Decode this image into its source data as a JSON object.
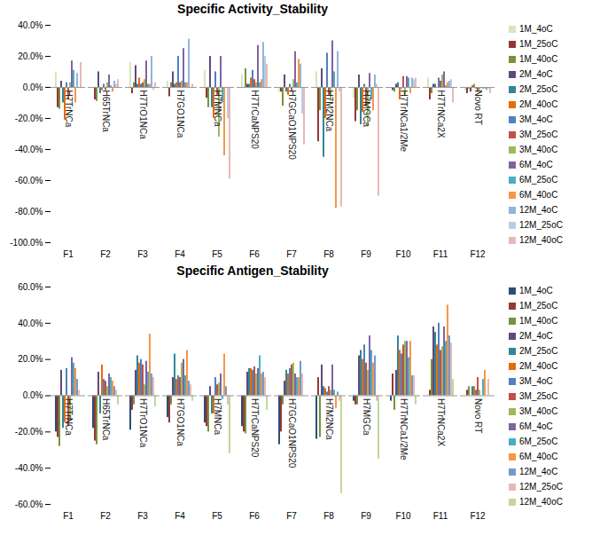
{
  "chart_data": [
    {
      "type": "bar",
      "title": "Specific Activity_Stability",
      "categories": [
        "F1",
        "F2",
        "F3",
        "F4",
        "F5",
        "F6",
        "F7",
        "F8",
        "F9",
        "F10",
        "F11",
        "F12"
      ],
      "group_labels": [
        "H7TrNCa",
        "H65TrNCa",
        "H7TrO1NCa",
        "H7GO1NCa",
        "H7MNCa",
        "H7TrCaNPS20",
        "H7GCaO1NPS20",
        "H7M2NCa",
        "H7MGCa",
        "H7TrNCa1/2Me",
        "H7TrNCa2X",
        "Novo RT"
      ],
      "ylim": [
        -100,
        40
      ],
      "yticks": [
        {
          "value": -100,
          "label": "-100.0%"
        },
        {
          "value": -80,
          "label": "-80.0%"
        },
        {
          "value": -60,
          "label": "-60.0%"
        },
        {
          "value": -40,
          "label": "-40.0%"
        },
        {
          "value": -20,
          "label": "-20.0%"
        },
        {
          "value": 0,
          "label": "0.0%"
        },
        {
          "value": 20,
          "label": "20.0%"
        },
        {
          "value": 40,
          "label": "40.0%"
        }
      ],
      "legend": "right",
      "series": [
        {
          "name": "1M_4oC",
          "color": "#d7e4bd",
          "values": [
            10,
            0,
            16,
            4,
            11,
            8,
            -3,
            10,
            -7,
            0,
            6,
            -2
          ]
        },
        {
          "name": "1M_25oC",
          "color": "#953735",
          "values": [
            -13,
            -8,
            -4,
            -6,
            -7,
            0,
            -3,
            -35,
            -22,
            -2,
            -8,
            -4
          ]
        },
        {
          "name": "1M_40oC",
          "color": "#77933c",
          "values": [
            -14,
            -9,
            3,
            3,
            -13,
            12,
            -12,
            -15,
            -15,
            -3,
            -4,
            -1
          ]
        },
        {
          "name": "2M_4oC",
          "color": "#604a7b",
          "values": [
            4,
            10,
            14,
            10,
            20,
            2,
            8,
            12,
            8,
            2,
            2,
            -3
          ]
        },
        {
          "name": "2M_25oC",
          "color": "#31859c",
          "values": [
            -10,
            -4,
            2,
            2,
            -13,
            2,
            -3,
            -45,
            -24,
            3,
            2,
            1
          ]
        },
        {
          "name": "2M_40oC",
          "color": "#e46c0a",
          "values": [
            -21,
            -2,
            6,
            3,
            -20,
            6,
            -5,
            -20,
            -16,
            -8,
            0,
            2
          ]
        },
        {
          "name": "3M_4oC",
          "color": "#4f81bd",
          "values": [
            3,
            2,
            2,
            20,
            10,
            11,
            2,
            22,
            2,
            -1,
            6,
            -1
          ]
        },
        {
          "name": "3M_25oC",
          "color": "#c0504d",
          "values": [
            -8,
            -2,
            3,
            3,
            -5,
            5,
            -3,
            -5,
            -12,
            7,
            4,
            -3
          ]
        },
        {
          "name": "3M_40oC",
          "color": "#9bbb59",
          "values": [
            3,
            3,
            5,
            4,
            -32,
            3,
            5,
            -8,
            -25,
            -5,
            8,
            -2
          ]
        },
        {
          "name": "6M_4oC",
          "color": "#8064a2",
          "values": [
            17,
            8,
            17,
            25,
            20,
            27,
            23,
            30,
            9,
            7,
            10,
            0
          ]
        },
        {
          "name": "6M_25oC",
          "color": "#4bacc6",
          "values": [
            11,
            1,
            2,
            3,
            -10,
            3,
            3,
            10,
            -8,
            6,
            1,
            -1
          ]
        },
        {
          "name": "6M_40oC",
          "color": "#f79646",
          "values": [
            -10,
            -3,
            2,
            3,
            -44,
            5,
            18,
            -78,
            -15,
            -4,
            3,
            -1
          ]
        },
        {
          "name": "12M_4oC",
          "color": "#95b3d7",
          "values": [
            9,
            4,
            20,
            31,
            0,
            29,
            15,
            23,
            8,
            6,
            4,
            -2
          ]
        },
        {
          "name": "12M_25oC",
          "color": "#b9cde5",
          "values": [
            0,
            2,
            -2,
            0,
            -20,
            20,
            -17,
            -3,
            2,
            5,
            5,
            -1
          ]
        },
        {
          "name": "12M_40oC",
          "color": "#e6b9b8",
          "values": [
            16,
            5,
            3,
            2,
            -59,
            15,
            -37,
            -77,
            -70,
            6,
            -10,
            -4
          ]
        }
      ]
    },
    {
      "type": "bar",
      "title": "Specific Antigen_Stability",
      "categories": [
        "F1",
        "F2",
        "F3",
        "F4",
        "F5",
        "F6",
        "F7",
        "F8",
        "F9",
        "F10",
        "F11",
        "F12"
      ],
      "group_labels": [
        "H7TrNCa",
        "H65TrNCa",
        "H7TrO1NCa",
        "H7GO1NCa",
        "H7MNCa",
        "H7TrCaNPS20",
        "H7GCaO1NPS20",
        "H7M2NCa",
        "H7MGCa",
        "H7TrNCa1/2Me",
        "H7TrNCa2X",
        "Novo RT"
      ],
      "ylim": [
        -60,
        60
      ],
      "yticks": [
        {
          "value": -60,
          "label": "-60.0%"
        },
        {
          "value": -40,
          "label": "-40.0%"
        },
        {
          "value": -20,
          "label": "-20.0%"
        },
        {
          "value": 0,
          "label": "0.0%"
        },
        {
          "value": 20,
          "label": "20.0%"
        },
        {
          "value": 40,
          "label": "40.0%"
        },
        {
          "value": 60,
          "label": "60.0%"
        }
      ],
      "legend": "right",
      "series": [
        {
          "name": "1M_4oC",
          "color": "#2c4d75",
          "values": [
            -20,
            -18,
            -19,
            -12,
            -15,
            -17,
            -27,
            -24,
            -3,
            -3,
            0,
            0
          ]
        },
        {
          "name": "1M_25oC",
          "color": "#953735",
          "values": [
            -23,
            -25,
            -8,
            -15,
            -17,
            -20,
            -20,
            10,
            -5,
            12,
            3,
            3
          ]
        },
        {
          "name": "1M_40oC",
          "color": "#77933c",
          "values": [
            -28,
            -27,
            -5,
            -5,
            -20,
            -21,
            -5,
            -23,
            -5,
            -8,
            20,
            5
          ]
        },
        {
          "name": "2M_4oC",
          "color": "#604a7b",
          "values": [
            14,
            13,
            14,
            10,
            5,
            13,
            8,
            17,
            22,
            14,
            38,
            0
          ]
        },
        {
          "name": "2M_25oC",
          "color": "#31859c",
          "values": [
            -18,
            -10,
            22,
            23,
            -10,
            15,
            14,
            5,
            25,
            33,
            35,
            5
          ]
        },
        {
          "name": "2M_40oC",
          "color": "#e46c0a",
          "values": [
            -15,
            17,
            18,
            9,
            -10,
            15,
            12,
            4,
            20,
            25,
            28,
            5
          ]
        },
        {
          "name": "3M_4oC",
          "color": "#4f81bd",
          "values": [
            15,
            9,
            20,
            11,
            10,
            14,
            15,
            2,
            28,
            23,
            40,
            3
          ]
        },
        {
          "name": "3M_25oC",
          "color": "#c0504d",
          "values": [
            -17,
            8,
            17,
            10,
            6,
            16,
            17,
            5,
            18,
            28,
            25,
            10
          ]
        },
        {
          "name": "3M_40oC",
          "color": "#9bbb59",
          "values": [
            -14,
            5,
            6,
            18,
            7,
            12,
            18,
            3,
            14,
            30,
            27,
            3
          ]
        },
        {
          "name": "6M_4oC",
          "color": "#8064a2",
          "values": [
            21,
            12,
            19,
            20,
            12,
            15,
            12,
            17,
            33,
            30,
            38,
            0
          ]
        },
        {
          "name": "6M_25oC",
          "color": "#4bacc6",
          "values": [
            18,
            10,
            13,
            11,
            -2,
            22,
            10,
            3,
            25,
            21,
            30,
            9
          ]
        },
        {
          "name": "6M_40oC",
          "color": "#f79646",
          "values": [
            15,
            8,
            34,
            25,
            23,
            12,
            10,
            -7,
            18,
            30,
            50,
            14
          ]
        },
        {
          "name": "12M_4oC",
          "color": "#729aca",
          "values": [
            9,
            5,
            12,
            8,
            5,
            13,
            19,
            2,
            22,
            11,
            33,
            0
          ]
        },
        {
          "name": "12M_25oC",
          "color": "#e6b9b8",
          "values": [
            3,
            3,
            10,
            6,
            -5,
            10,
            12,
            -3,
            -3,
            11,
            29,
            9
          ]
        },
        {
          "name": "12M_40oC",
          "color": "#c3d69b",
          "values": [
            0,
            -5,
            -6,
            -3,
            -32,
            -8,
            0,
            -54,
            -35,
            -5,
            9,
            0
          ]
        }
      ]
    }
  ]
}
